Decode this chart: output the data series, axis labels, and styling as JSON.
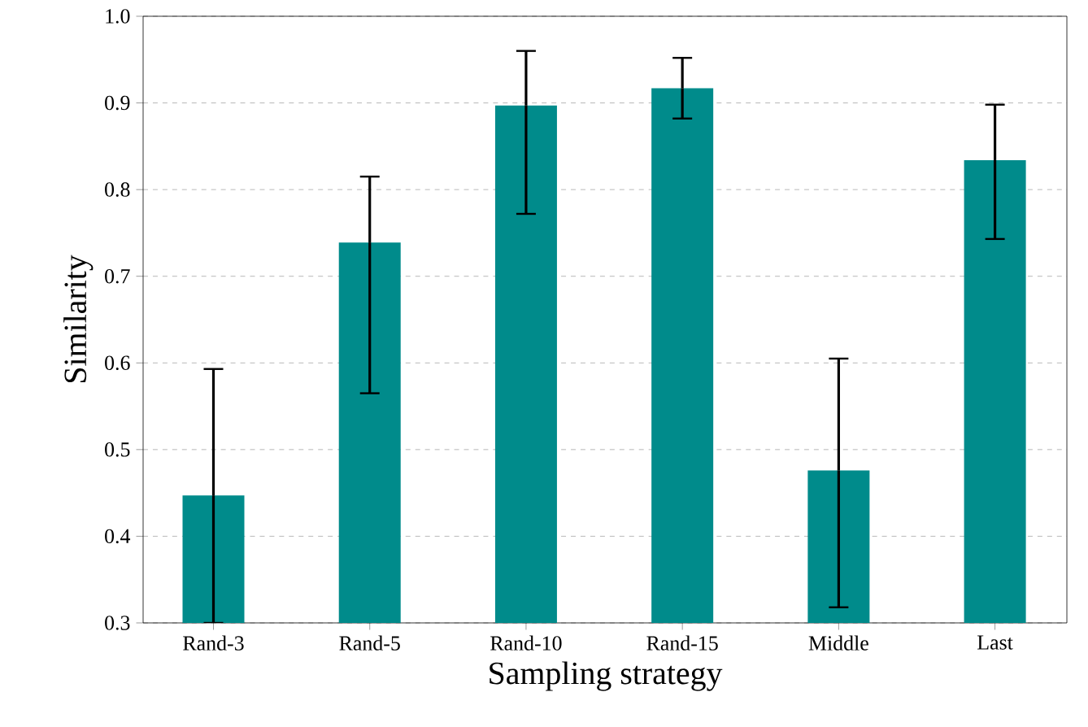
{
  "chart_data": {
    "type": "bar",
    "xlabel": "Sampling strategy",
    "ylabel": "Similarity",
    "categories": [
      "Rand-3",
      "Rand-5",
      "Rand-10",
      "Rand-15",
      "Middle",
      "Last"
    ],
    "values": [
      0.447,
      0.739,
      0.897,
      0.917,
      0.476,
      0.834
    ],
    "errors": [
      [
        0.3,
        0.593
      ],
      [
        0.565,
        0.815
      ],
      [
        0.772,
        0.96
      ],
      [
        0.882,
        0.952
      ],
      [
        0.318,
        0.605
      ],
      [
        0.743,
        0.898
      ]
    ],
    "color": "#008b8b",
    "ylim": [
      0.3,
      1.0
    ],
    "yticks": [
      0.3,
      0.4,
      0.5,
      0.6,
      0.7,
      0.8,
      0.9,
      {
        "value": 1.0,
        "label": "1.0"
      }
    ],
    "grid": "y"
  }
}
